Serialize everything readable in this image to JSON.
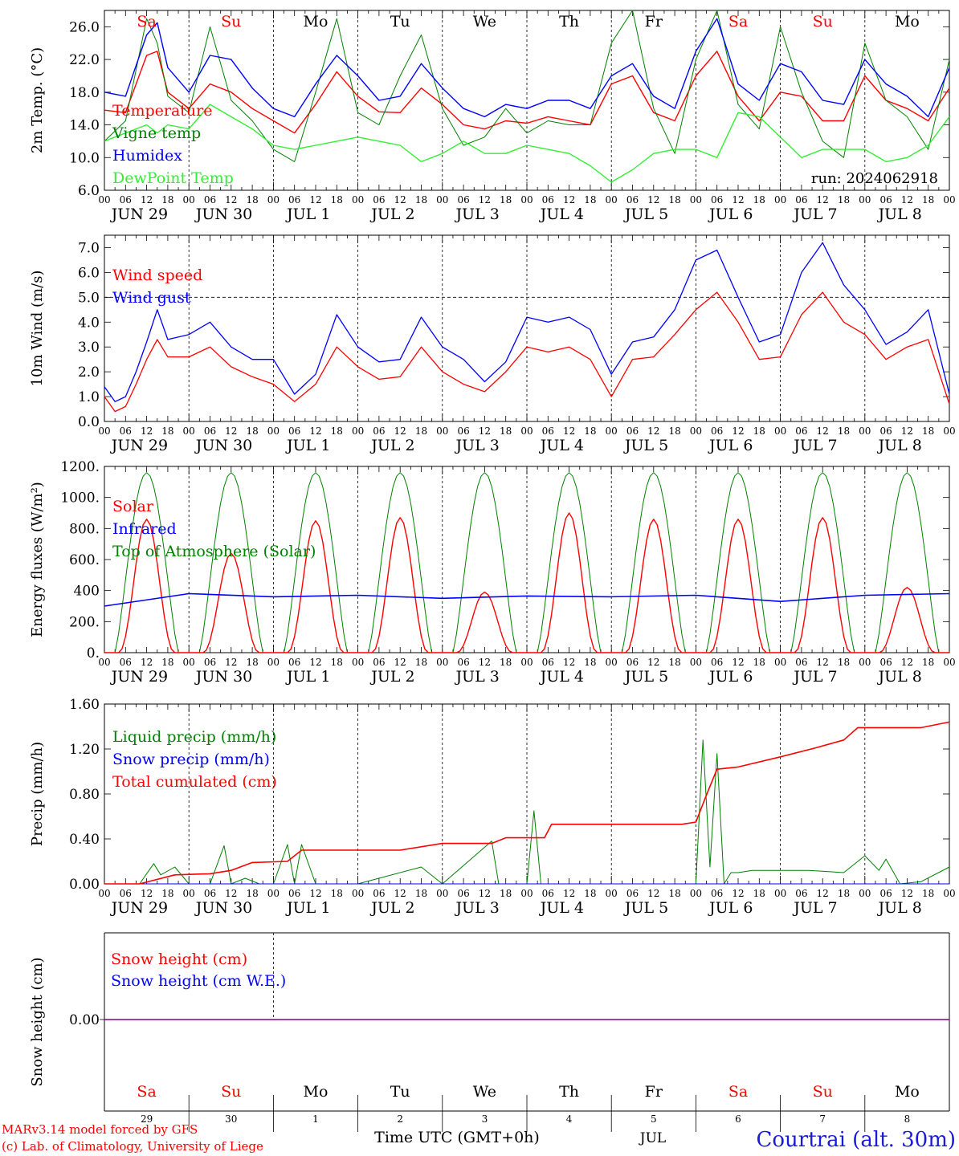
{
  "run_label": "run: 2024062918",
  "days": [
    {
      "date": "JUN 29",
      "weekday": "Sa",
      "day_num": "29",
      "weekend": true
    },
    {
      "date": "JUN 30",
      "weekday": "Su",
      "day_num": "30",
      "weekend": true
    },
    {
      "date": "JUL  1",
      "weekday": "Mo",
      "day_num": "1",
      "weekend": false
    },
    {
      "date": "JUL  2",
      "weekday": "Tu",
      "day_num": "2",
      "weekend": false
    },
    {
      "date": "JUL  3",
      "weekday": "We",
      "day_num": "3",
      "weekend": false
    },
    {
      "date": "JUL  4",
      "weekday": "Th",
      "day_num": "4",
      "weekend": false
    },
    {
      "date": "JUL  5",
      "weekday": "Fr",
      "day_num": "5",
      "weekend": false
    },
    {
      "date": "JUL  6",
      "weekday": "Sa",
      "day_num": "6",
      "weekend": true
    },
    {
      "date": "JUL  7",
      "weekday": "Su",
      "day_num": "7",
      "weekend": true
    },
    {
      "date": "JUL  8",
      "weekday": "Mo",
      "day_num": "8",
      "weekend": false
    }
  ],
  "hour_labels": [
    "00",
    "06",
    "12",
    "18"
  ],
  "final_hour_label": "00",
  "colors": {
    "red": "#ff0000",
    "green": "#008000",
    "blue": "#0000ff",
    "light_green": "#33ee33",
    "purple": "#800080"
  },
  "footer": {
    "model": "MARv3.14 model forced by GFS",
    "credit": "(c) Lab. of Climatology, University of Liege",
    "time_axis": "Time UTC (GMT+0h)",
    "month": "JUL",
    "location": "Courtrai (alt. 30m)"
  },
  "chart_data": [
    {
      "type": "line",
      "ylabel": "2m Temp. (°C)",
      "yticks": [
        "6.0",
        "10.0",
        "14.0",
        "18.0",
        "22.0",
        "26.0"
      ],
      "ylim": [
        6,
        28
      ],
      "x_hours": [
        0,
        6,
        12,
        15,
        18,
        24,
        30,
        36,
        42,
        48,
        54,
        60,
        66,
        72,
        78,
        84,
        90,
        96,
        102,
        108,
        114,
        120,
        126,
        132,
        138,
        144,
        150,
        156,
        162,
        168,
        174,
        180,
        186,
        192,
        198,
        204,
        210,
        216,
        222,
        228,
        234,
        240
      ],
      "series": [
        {
          "name": "Temperature",
          "color": "red",
          "values": [
            15.8,
            15.5,
            22.5,
            23.0,
            18.0,
            16.0,
            19.0,
            18.0,
            16.0,
            14.5,
            13.0,
            16.5,
            20.5,
            17.5,
            15.6,
            15.5,
            18.5,
            16.5,
            14.0,
            13.5,
            14.5,
            14.2,
            15.0,
            14.5,
            14.0,
            19.0,
            20.0,
            15.5,
            14.5,
            20.0,
            23.0,
            17.5,
            14.5,
            18.0,
            17.5,
            14.5,
            14.5,
            20.0,
            17.0,
            16.0,
            14.5,
            18.5
          ]
        },
        {
          "name": "Vigne temp",
          "color": "green",
          "values": [
            12.0,
            14.5,
            27.0,
            24.0,
            17.5,
            15.5,
            26.0,
            17.0,
            14.5,
            11.0,
            9.5,
            18.0,
            27.0,
            15.5,
            14.0,
            20.0,
            25.0,
            16.0,
            11.5,
            12.5,
            16.0,
            13.0,
            14.5,
            14.0,
            14.0,
            24.0,
            28.0,
            16.0,
            10.5,
            22.0,
            28.0,
            16.5,
            13.5,
            26.0,
            18.0,
            12.0,
            10.0,
            24.0,
            17.0,
            15.0,
            11.0,
            22.0
          ]
        },
        {
          "name": "Humidex",
          "color": "blue",
          "values": [
            18.0,
            17.5,
            25.0,
            26.5,
            21.0,
            18.0,
            22.5,
            22.0,
            18.5,
            16.0,
            15.0,
            19.0,
            22.5,
            20.0,
            17.0,
            17.5,
            21.5,
            18.5,
            16.0,
            15.0,
            16.5,
            16.0,
            17.0,
            17.0,
            16.0,
            20.0,
            21.5,
            17.5,
            16.0,
            23.0,
            27.0,
            19.0,
            17.0,
            21.5,
            20.5,
            17.0,
            16.5,
            22.0,
            19.0,
            17.5,
            15.0,
            21.0
          ]
        },
        {
          "name": "DewPoint Temp",
          "color": "light_green",
          "values": [
            12.0,
            13.0,
            14.0,
            13.0,
            14.0,
            13.5,
            16.5,
            15.0,
            13.5,
            11.5,
            11.0,
            11.5,
            12.0,
            12.5,
            12.0,
            11.5,
            9.5,
            10.5,
            12.0,
            10.5,
            10.5,
            11.5,
            11.0,
            10.5,
            9.0,
            7.0,
            8.5,
            10.5,
            11.0,
            11.0,
            10.0,
            15.5,
            15.0,
            12.5,
            10.0,
            11.0,
            11.0,
            11.0,
            9.5,
            10.0,
            11.5,
            15.0
          ]
        }
      ]
    },
    {
      "type": "line",
      "ylabel": "10m Wind (m/s)",
      "yticks": [
        "0.0",
        "1.0",
        "2.0",
        "3.0",
        "4.0",
        "5.0",
        "6.0",
        "7.0"
      ],
      "ylim": [
        0,
        7.5
      ],
      "reference_line": 5.0,
      "x_hours": [
        0,
        3,
        6,
        9,
        12,
        15,
        18,
        24,
        30,
        36,
        42,
        48,
        54,
        60,
        66,
        72,
        78,
        84,
        90,
        96,
        102,
        108,
        114,
        120,
        126,
        132,
        138,
        144,
        150,
        156,
        162,
        168,
        174,
        180,
        186,
        192,
        198,
        204,
        210,
        216,
        222,
        228,
        234,
        240
      ],
      "series": [
        {
          "name": "Wind speed",
          "color": "red",
          "values": [
            1.0,
            0.4,
            0.6,
            1.5,
            2.5,
            3.3,
            2.6,
            2.6,
            3.0,
            2.2,
            1.8,
            1.5,
            0.8,
            1.5,
            3.0,
            2.2,
            1.7,
            1.8,
            3.0,
            2.0,
            1.5,
            1.2,
            2.0,
            3.0,
            2.8,
            3.0,
            2.5,
            1.0,
            2.5,
            2.6,
            3.5,
            4.5,
            5.2,
            4.0,
            2.5,
            2.6,
            4.3,
            5.2,
            4.0,
            3.5,
            2.5,
            3.0,
            3.3,
            0.7
          ]
        },
        {
          "name": "Wind gust",
          "color": "blue",
          "values": [
            1.4,
            0.8,
            1.0,
            2.0,
            3.2,
            4.5,
            3.3,
            3.5,
            4.0,
            3.0,
            2.5,
            2.5,
            1.1,
            1.9,
            4.3,
            3.0,
            2.4,
            2.5,
            4.2,
            3.0,
            2.5,
            1.6,
            2.4,
            4.2,
            4.0,
            4.2,
            3.7,
            1.9,
            3.2,
            3.4,
            4.5,
            6.5,
            6.9,
            5.0,
            3.2,
            3.5,
            6.0,
            7.2,
            5.5,
            4.5,
            3.1,
            3.6,
            4.5,
            1.1
          ]
        }
      ]
    },
    {
      "type": "line",
      "ylabel": "Energy fluxes (W/m²)",
      "yticks": [
        "0.",
        "200.",
        "400",
        "600.",
        "800.",
        "1000.",
        "1200."
      ],
      "ylim": [
        0,
        1200
      ],
      "series": [
        {
          "name": "Solar",
          "color": "red",
          "daily_peak": [
            860,
            640,
            850,
            870,
            390,
            900,
            860,
            860,
            870,
            420
          ],
          "peak_hour": 12,
          "span_hours": [
            4,
            20
          ]
        },
        {
          "name": "Infrared",
          "color": "blue",
          "values": [
            300,
            380,
            360,
            370,
            350,
            365,
            360,
            370,
            330,
            370,
            380
          ],
          "x_hours": [
            0,
            24,
            48,
            72,
            96,
            120,
            144,
            168,
            192,
            216,
            240
          ]
        },
        {
          "name": "Top of Atmosphere (Solar)",
          "color": "green",
          "daily_peak": [
            1160,
            1160,
            1160,
            1160,
            1160,
            1160,
            1160,
            1160,
            1160,
            1160
          ],
          "peak_hour": 12,
          "span_hours": [
            3,
            21
          ]
        }
      ]
    },
    {
      "type": "line",
      "ylabel": "Precip (mm/h)",
      "yticks": [
        "0.00",
        "0.40",
        "0.80",
        "1.20",
        "1.60"
      ],
      "ylim": [
        0,
        1.6
      ],
      "series": [
        {
          "name": "Liquid precip (mm/h)",
          "color": "green",
          "x_hours": [
            0,
            10,
            14,
            16,
            20,
            24,
            30,
            34,
            36,
            40,
            44,
            48,
            52,
            54,
            56,
            60,
            72,
            90,
            96,
            110,
            112,
            114,
            116,
            120,
            122,
            124,
            126,
            127,
            130,
            168,
            170,
            172,
            174,
            176,
            178,
            180,
            184,
            200,
            210,
            216,
            220,
            222,
            226,
            232,
            240
          ],
          "values": [
            0,
            0,
            0.18,
            0.08,
            0.15,
            0,
            0,
            0.34,
            0,
            0.05,
            0,
            0,
            0.35,
            0,
            0.35,
            0,
            0,
            0.15,
            0,
            0.38,
            0,
            0,
            0,
            0,
            0.65,
            0,
            0,
            0,
            0,
            0,
            1.28,
            0.15,
            1.16,
            0,
            0.1,
            0.1,
            0.12,
            0.12,
            0.1,
            0.25,
            0.12,
            0.22,
            0,
            0.02,
            0.15
          ]
        },
        {
          "name": "Snow precip (mm/h)",
          "color": "blue",
          "values": [
            0,
            0
          ],
          "x_hours": [
            0,
            240
          ]
        },
        {
          "name": "Total cumulated (cm)",
          "color": "red",
          "x_hours": [
            0,
            10,
            20,
            30,
            36,
            42,
            52,
            56,
            62,
            84,
            96,
            110,
            114,
            125,
            127,
            130,
            164,
            168,
            171,
            174,
            180,
            192,
            202,
            210,
            214,
            232,
            240
          ],
          "values": [
            0,
            0,
            0.08,
            0.09,
            0.12,
            0.19,
            0.2,
            0.3,
            0.3,
            0.3,
            0.36,
            0.36,
            0.41,
            0.41,
            0.53,
            0.53,
            0.53,
            0.55,
            0.79,
            1.02,
            1.04,
            1.13,
            1.21,
            1.28,
            1.39,
            1.39,
            1.44
          ]
        }
      ]
    },
    {
      "type": "line",
      "ylabel": "Snow height (cm)",
      "yticks": [
        "0.00"
      ],
      "series": [
        {
          "name": "Snow height (cm)",
          "color": "red",
          "values": [
            0,
            0
          ]
        },
        {
          "name": "Snow height (cm W.E.)",
          "color": "blue",
          "values": [
            0,
            0
          ]
        }
      ]
    }
  ]
}
